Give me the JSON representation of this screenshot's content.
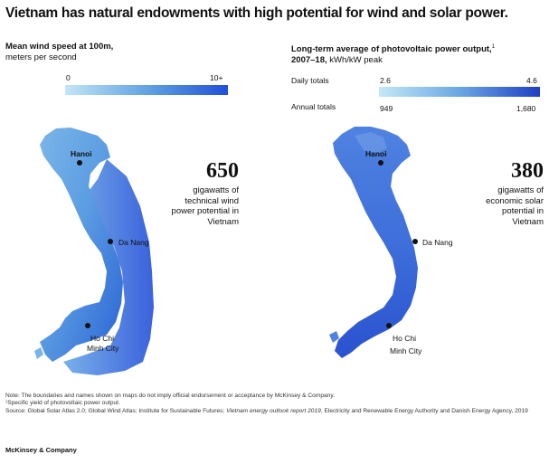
{
  "title": "Vietnam has natural endowments with high potential for wind and solar power.",
  "colors": {
    "light": "#bfe4f5",
    "mid": "#5a9be0",
    "dark": "#2755d8",
    "darkest": "#1e3fbf"
  },
  "wind": {
    "legend_title": "Mean wind speed at 100m,",
    "legend_unit": "meters per second",
    "scale_min": "0",
    "scale_max": "10+",
    "city_hanoi": "Hanoi",
    "city_danang": "Da Nang",
    "city_hcm_1": "Ho Chi",
    "city_hcm_2": "Minh City",
    "stat_value": "650",
    "stat_line1": "gigawatts of",
    "stat_line2": "technical wind",
    "stat_line3": "power potential in",
    "stat_line4": "Vietnam"
  },
  "solar": {
    "legend_title": "Long-term average of photovoltaic power output,",
    "legend_sup": "1",
    "legend_years": "2007–18,",
    "legend_unit": "kWh/kW peak",
    "daily_label": "Daily totals",
    "daily_min": "2.6",
    "daily_max": "4.6",
    "annual_label": "Annual totals",
    "annual_min": "949",
    "annual_max": "1,680",
    "city_hanoi": "Hanoi",
    "city_danang": "Da Nang",
    "city_hcm_1": "Ho Chi",
    "city_hcm_2": "Minh City",
    "stat_value": "380",
    "stat_line1": "gigawatts of",
    "stat_line2": "economic solar",
    "stat_line3": "potential in",
    "stat_line4": "Vietnam"
  },
  "footnotes": {
    "note": "Note: The boundaries and names shown on maps do not imply official endorsement or acceptance by McKinsey & Company.",
    "note1": "¹Specific yield of photovoltaic power output.",
    "source_a": "Source: Global Solar Atlas 2.0; Global Wind Atlas; Institute for Sustainable Futures; ",
    "source_italic": "Vietnam energy outlook report 2019",
    "source_b": ", Electricity and Renewable Energy Authority and Danish Energy Agency, 2019"
  },
  "brand": "McKinsey & Company"
}
